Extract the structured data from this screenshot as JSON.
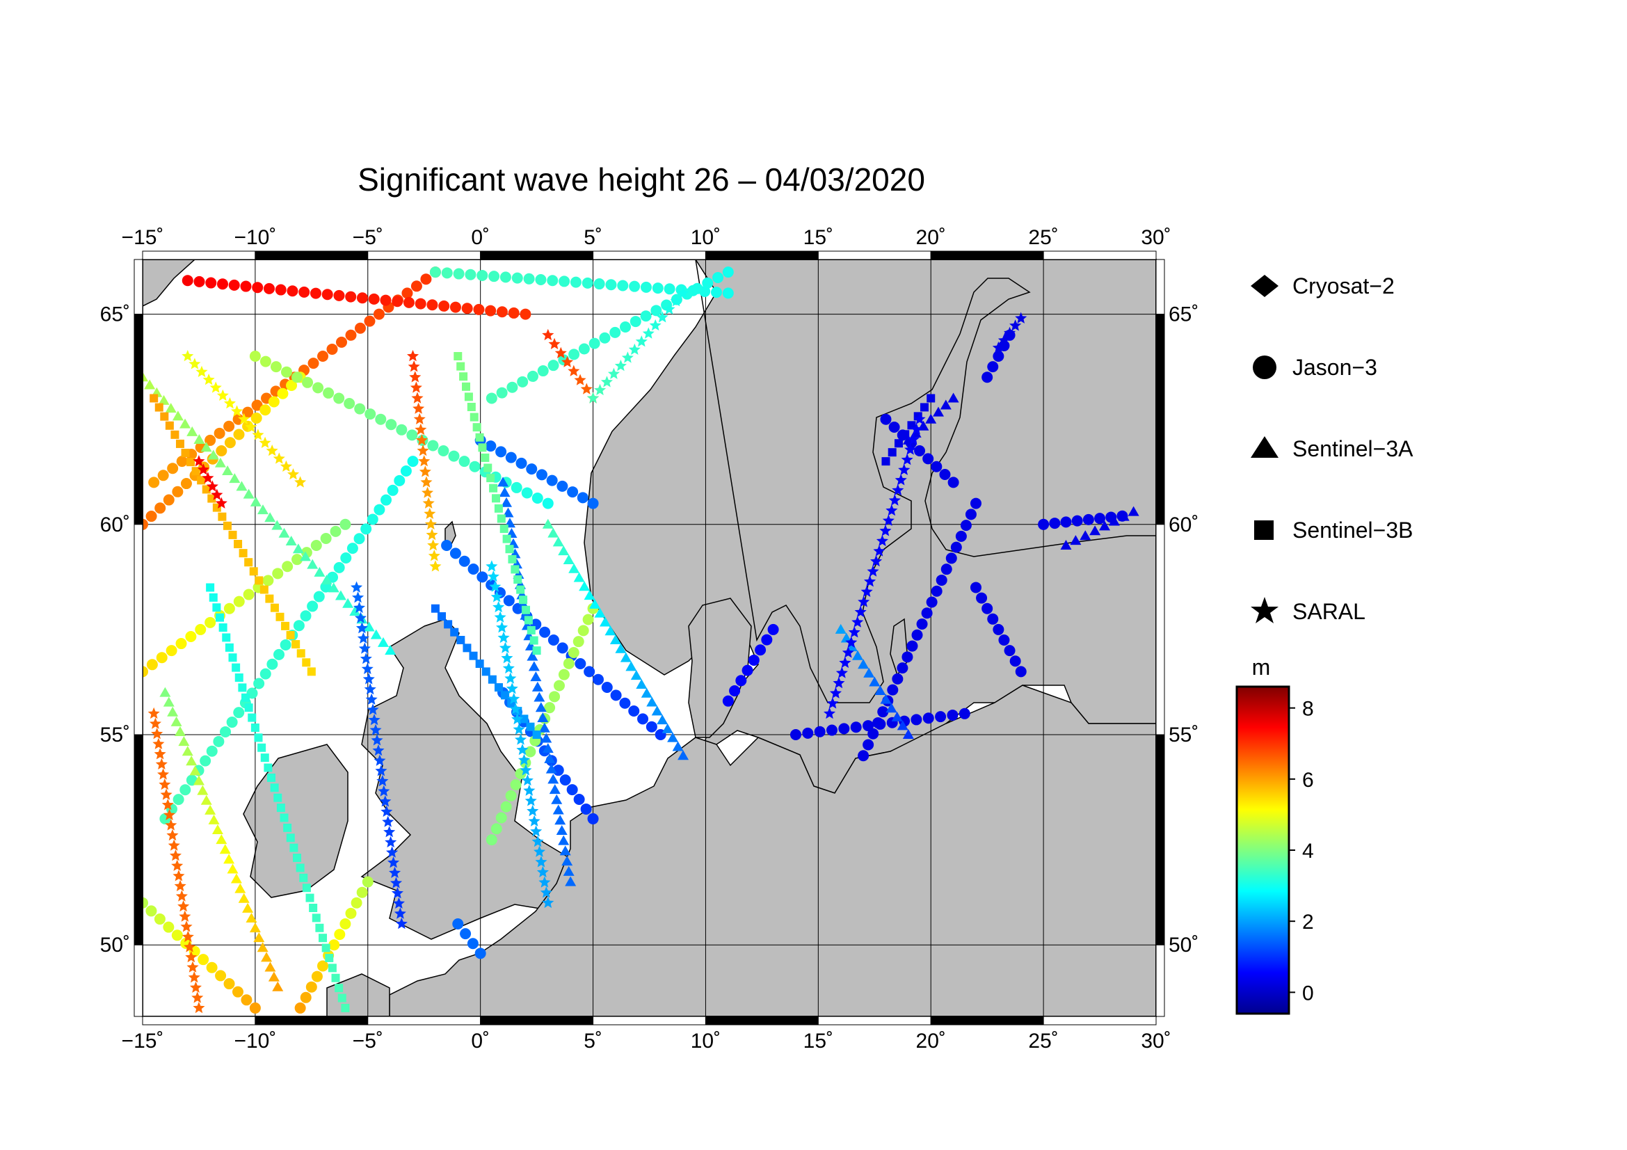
{
  "title": "Significant wave height 26 – 04/03/2020",
  "lon_ticks": [
    "−15˚",
    "−10˚",
    "−5˚",
    "0˚",
    "5˚",
    "10˚",
    "15˚",
    "20˚",
    "25˚",
    "30˚"
  ],
  "lat_ticks": [
    "65˚",
    "60˚",
    "55˚",
    "50˚"
  ],
  "legend": {
    "items": [
      {
        "label": "Cryosat−2",
        "marker": "diamond"
      },
      {
        "label": "Jason−3",
        "marker": "circle"
      },
      {
        "label": "Sentinel−3A",
        "marker": "triangle"
      },
      {
        "label": "Sentinel−3B",
        "marker": "square"
      },
      {
        "label": "SARAL",
        "marker": "star"
      }
    ]
  },
  "colorbar": {
    "unit": "m",
    "ticks": [
      "8",
      "6",
      "4",
      "2",
      "0"
    ],
    "range": [
      -0.6,
      8.6
    ],
    "colormap": "jet"
  },
  "map": {
    "lon_range": [
      -15,
      30
    ],
    "lat_range": [
      48.3,
      66.3
    ],
    "land_color": "#bdbdbd",
    "sea_color": "#ffffff",
    "grid": true
  },
  "chart_data": {
    "type": "scatter",
    "value_name": "significant wave height (m)",
    "tracks": [
      {
        "marker": "circle",
        "from": [
          -14.5,
          61.0
        ],
        "to": [
          -2.0,
          66.0
        ],
        "value_from": 6.0,
        "value_to": 7.0
      },
      {
        "marker": "circle",
        "from": [
          -13.0,
          65.8
        ],
        "to": [
          2.0,
          65.0
        ],
        "value_from": 7.5,
        "value_to": 7.0
      },
      {
        "marker": "circle",
        "from": [
          -15.0,
          60.0
        ],
        "to": [
          -8.0,
          63.5
        ],
        "value_from": 6.5,
        "value_to": 5.0
      },
      {
        "marker": "circle",
        "from": [
          -10.0,
          64.0
        ],
        "to": [
          3.0,
          60.5
        ],
        "value_from": 4.5,
        "value_to": 3.0
      },
      {
        "marker": "circle",
        "from": [
          -15.0,
          56.5
        ],
        "to": [
          -6.0,
          60.0
        ],
        "value_from": 5.5,
        "value_to": 4.0
      },
      {
        "marker": "circle",
        "from": [
          -14.0,
          53.0
        ],
        "to": [
          -3.0,
          61.5
        ],
        "value_from": 3.5,
        "value_to": 3.0
      },
      {
        "marker": "circle",
        "from": [
          0.0,
          62.0
        ],
        "to": [
          5.0,
          60.5
        ],
        "value_from": 1.5,
        "value_to": 1.5
      },
      {
        "marker": "circle",
        "from": [
          -1.5,
          59.5
        ],
        "to": [
          8.0,
          55.0
        ],
        "value_from": 1.5,
        "value_to": 1.0
      },
      {
        "marker": "circle",
        "from": [
          1.0,
          56.0
        ],
        "to": [
          5.0,
          53.0
        ],
        "value_from": 1.5,
        "value_to": 1.0
      },
      {
        "marker": "circle",
        "from": [
          5.0,
          58.0
        ],
        "to": [
          0.5,
          52.5
        ],
        "value_from": 4.5,
        "value_to": 4.0
      },
      {
        "marker": "circle",
        "from": [
          -15.0,
          51.0
        ],
        "to": [
          -10.0,
          48.5
        ],
        "value_from": 4.5,
        "value_to": 6.0
      },
      {
        "marker": "circle",
        "from": [
          -5.0,
          51.5
        ],
        "to": [
          -8.0,
          48.5
        ],
        "value_from": 4.5,
        "value_to": 6.0
      },
      {
        "marker": "circle",
        "from": [
          -1.0,
          50.5
        ],
        "to": [
          0.0,
          49.8
        ],
        "value_from": 1.5,
        "value_to": 1.5
      },
      {
        "marker": "circle",
        "from": [
          11.0,
          55.8
        ],
        "to": [
          13.0,
          57.5
        ],
        "value_from": 0.5,
        "value_to": 0.5
      },
      {
        "marker": "circle",
        "from": [
          14.0,
          55.0
        ],
        "to": [
          21.5,
          55.5
        ],
        "value_from": 0.3,
        "value_to": 0.3
      },
      {
        "marker": "circle",
        "from": [
          17.0,
          54.5
        ],
        "to": [
          22.0,
          60.5
        ],
        "value_from": 0.3,
        "value_to": 0.3
      },
      {
        "marker": "circle",
        "from": [
          18.0,
          62.5
        ],
        "to": [
          21.0,
          61.0
        ],
        "value_from": 0.3,
        "value_to": 0.3
      },
      {
        "marker": "circle",
        "from": [
          22.0,
          58.5
        ],
        "to": [
          24.0,
          56.5
        ],
        "value_from": 0.3,
        "value_to": 0.3
      },
      {
        "marker": "circle",
        "from": [
          25.0,
          60.0
        ],
        "to": [
          28.5,
          60.2
        ],
        "value_from": 0.3,
        "value_to": 0.3
      },
      {
        "marker": "circle",
        "from": [
          22.5,
          63.5
        ],
        "to": [
          23.5,
          64.5
        ],
        "value_from": 0.3,
        "value_to": 0.3
      },
      {
        "marker": "circle",
        "from": [
          -2.0,
          66.0
        ],
        "to": [
          11.0,
          65.5
        ],
        "value_from": 3.5,
        "value_to": 3.0
      },
      {
        "marker": "circle",
        "from": [
          0.5,
          63.0
        ],
        "to": [
          11.0,
          66.0
        ],
        "value_from": 3.5,
        "value_to": 3.0
      },
      {
        "marker": "triangle",
        "from": [
          -15.0,
          63.5
        ],
        "to": [
          -4.0,
          57.0
        ],
        "value_from": 4.5,
        "value_to": 3.0
      },
      {
        "marker": "triangle",
        "from": [
          -14.0,
          56.0
        ],
        "to": [
          -9.0,
          49.0
        ],
        "value_from": 4.0,
        "value_to": 6.0
      },
      {
        "marker": "triangle",
        "from": [
          1.0,
          61.0
        ],
        "to": [
          4.0,
          51.5
        ],
        "value_from": 1.5,
        "value_to": 1.5
      },
      {
        "marker": "triangle",
        "from": [
          3.0,
          60.0
        ],
        "to": [
          9.0,
          54.5
        ],
        "value_from": 3.5,
        "value_to": 1.5
      },
      {
        "marker": "triangle",
        "from": [
          16.0,
          57.5
        ],
        "to": [
          19.0,
          55.0
        ],
        "value_from": 2.0,
        "value_to": 1.0
      },
      {
        "marker": "triangle",
        "from": [
          19.0,
          62.0
        ],
        "to": [
          21.0,
          63.0
        ],
        "value_from": 0.3,
        "value_to": 0.3
      },
      {
        "marker": "triangle",
        "from": [
          26.0,
          59.5
        ],
        "to": [
          29.0,
          60.3
        ],
        "value_from": 0.3,
        "value_to": 0.3
      },
      {
        "marker": "square",
        "from": [
          -14.5,
          63.0
        ],
        "to": [
          -7.5,
          56.5
        ],
        "value_from": 6.0,
        "value_to": 5.5
      },
      {
        "marker": "square",
        "from": [
          -12.0,
          58.5
        ],
        "to": [
          -6.0,
          48.5
        ],
        "value_from": 3.0,
        "value_to": 3.5
      },
      {
        "marker": "square",
        "from": [
          -2.0,
          58.0
        ],
        "to": [
          2.5,
          55.0
        ],
        "value_from": 1.5,
        "value_to": 2.0
      },
      {
        "marker": "square",
        "from": [
          -1.0,
          64.0
        ],
        "to": [
          2.5,
          57.0
        ],
        "value_from": 4.0,
        "value_to": 3.5
      },
      {
        "marker": "square",
        "from": [
          18.0,
          61.5
        ],
        "to": [
          20.0,
          63.0
        ],
        "value_from": 0.3,
        "value_to": 0.3
      },
      {
        "marker": "star",
        "from": [
          -14.5,
          55.5
        ],
        "to": [
          -12.5,
          48.5
        ],
        "value_from": 6.5,
        "value_to": 6.5
      },
      {
        "marker": "star",
        "from": [
          -3.0,
          64.0
        ],
        "to": [
          -2.0,
          59.0
        ],
        "value_from": 7.0,
        "value_to": 5.5
      },
      {
        "marker": "star",
        "from": [
          -5.5,
          58.5
        ],
        "to": [
          -3.5,
          50.5
        ],
        "value_from": 1.5,
        "value_to": 1.0
      },
      {
        "marker": "star",
        "from": [
          0.5,
          59.0
        ],
        "to": [
          3.0,
          51.0
        ],
        "value_from": 2.5,
        "value_to": 2.0
      },
      {
        "marker": "star",
        "from": [
          15.5,
          55.5
        ],
        "to": [
          19.5,
          62.5
        ],
        "value_from": 0.5,
        "value_to": 0.5
      },
      {
        "marker": "star",
        "from": [
          23.0,
          64.2
        ],
        "to": [
          24.0,
          64.9
        ],
        "value_from": 0.3,
        "value_to": 0.3
      },
      {
        "marker": "star",
        "from": [
          3.0,
          64.5
        ],
        "to": [
          5.0,
          63.0
        ],
        "value_from": 7.0,
        "value_to": 6.5
      },
      {
        "marker": "star",
        "from": [
          -12.5,
          61.5
        ],
        "to": [
          -11.5,
          60.5
        ],
        "value_from": 7.5,
        "value_to": 7.5
      },
      {
        "marker": "star",
        "from": [
          -13.0,
          64.0
        ],
        "to": [
          -8.0,
          61.0
        ],
        "value_from": 5.0,
        "value_to": 5.5
      },
      {
        "marker": "star",
        "from": [
          5.0,
          63.0
        ],
        "to": [
          9.0,
          65.5
        ],
        "value_from": 3.5,
        "value_to": 3.0
      }
    ]
  }
}
